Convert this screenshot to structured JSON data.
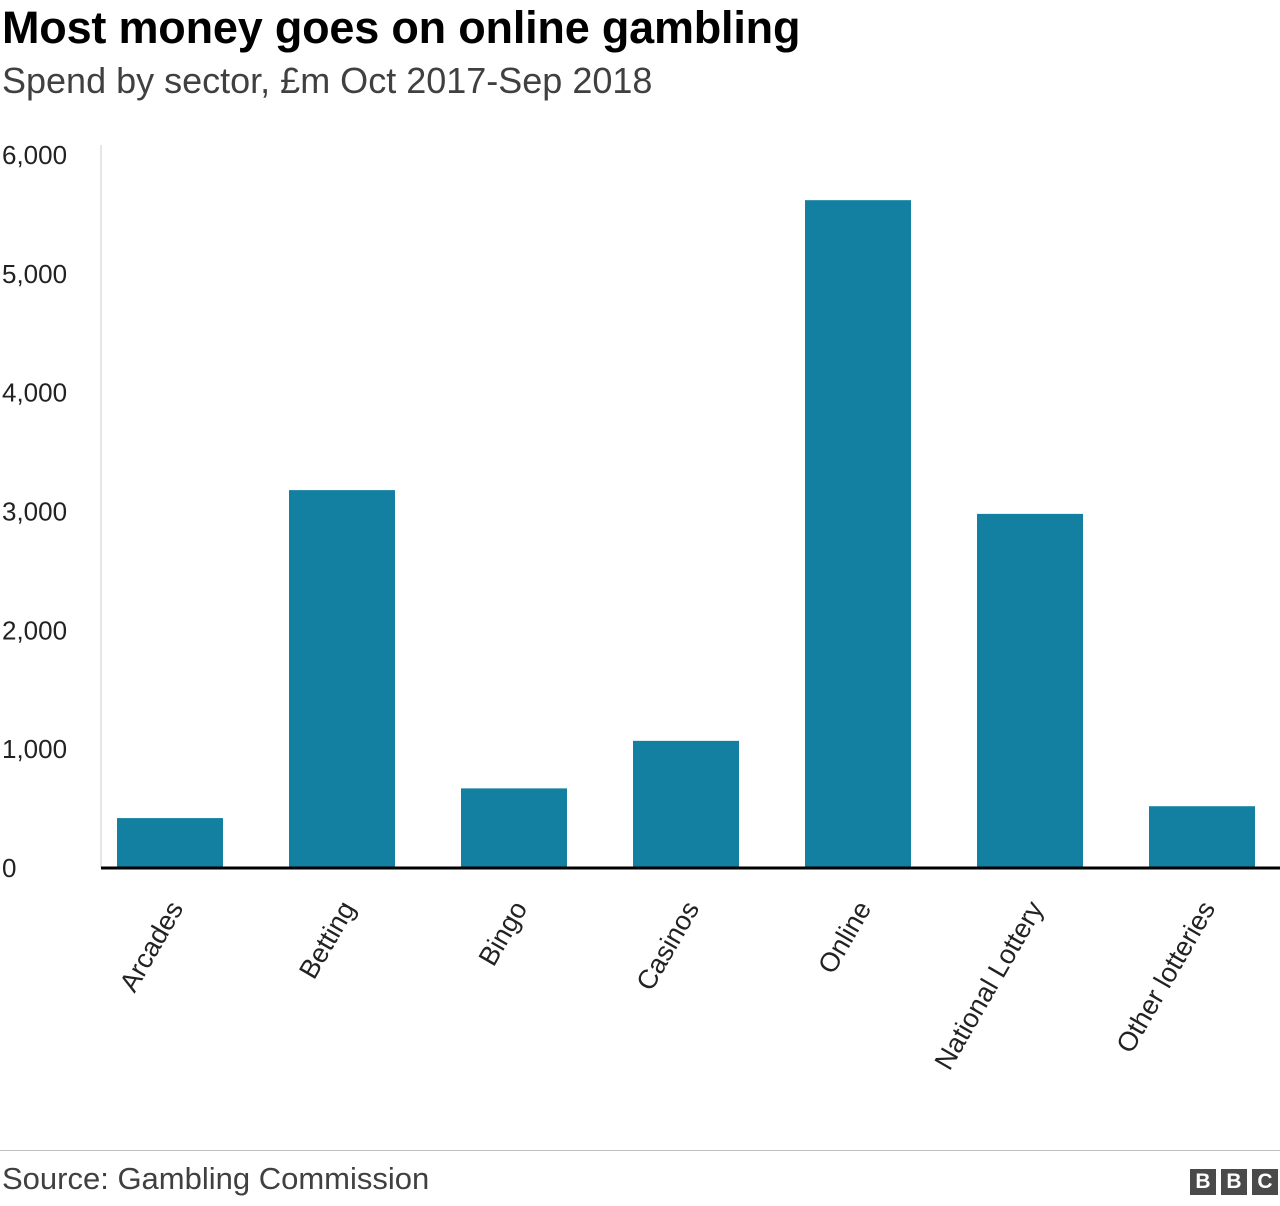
{
  "chart_data": {
    "type": "bar",
    "title": "Most money goes on online gambling",
    "subtitle": "Spend by sector, £m Oct 2017-Sep 2018",
    "categories": [
      "Arcades",
      "Betting",
      "Bingo",
      "Casinos",
      "Online",
      "National Lottery",
      "Other lotteries"
    ],
    "values": [
      420,
      3180,
      670,
      1070,
      5620,
      2980,
      520
    ],
    "ylim": [
      0,
      6000
    ],
    "yticks": [
      0,
      1000,
      2000,
      3000,
      4000,
      5000,
      6000
    ],
    "ytick_labels": [
      "0",
      "1,000",
      "2,000",
      "3,000",
      "4,000",
      "5,000",
      "6,000"
    ],
    "xlabel": "",
    "ylabel": "",
    "grid": false,
    "legend": "none",
    "bar_color": "#1380a1",
    "axis_color": "#000000"
  },
  "footer": {
    "source": "Source: Gambling Commission",
    "logo_letters": [
      "B",
      "B",
      "C"
    ]
  }
}
